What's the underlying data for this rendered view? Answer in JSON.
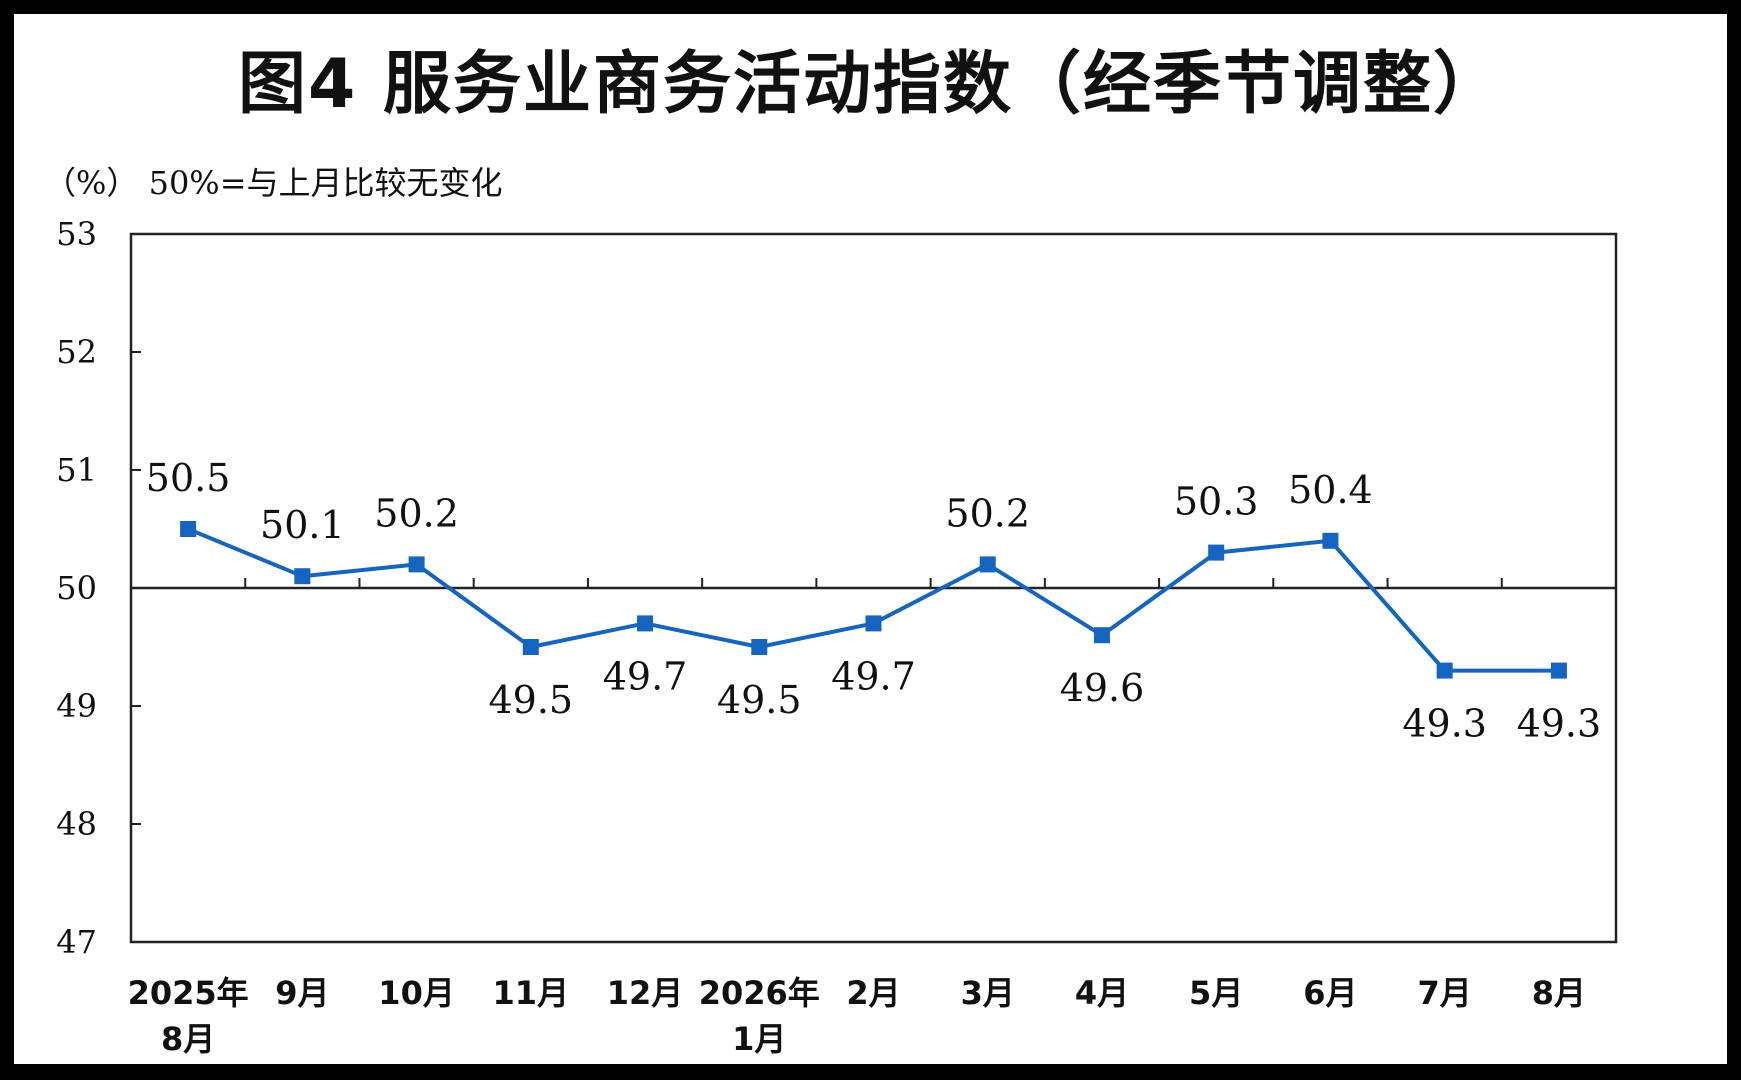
{
  "title": "图4  服务业商务活动指数（经季节调整）",
  "subtitle": "（%） 50%=与上月比较无变化",
  "colors": {
    "line": "#1565C0",
    "axis": "#222222",
    "background": "#ffffff",
    "frame": "#000000"
  },
  "chart_data": {
    "type": "line",
    "title": "图4  服务业商务活动指数（经季节调整）",
    "ylabel": "（%）",
    "note": "50%=与上月比较无变化",
    "categories": [
      "2025年\n8月",
      "9月",
      "10月",
      "11月",
      "12月",
      "2026年\n1月",
      "2月",
      "3月",
      "4月",
      "5月",
      "6月",
      "7月",
      "8月"
    ],
    "series": [
      {
        "values": [
          50.5,
          50.1,
          50.2,
          49.5,
          49.7,
          49.5,
          49.7,
          50.2,
          49.6,
          50.3,
          50.4,
          49.3,
          49.3
        ]
      }
    ],
    "data_labels": [
      "50.5",
      "50.1",
      "50.2",
      "49.5",
      "49.7",
      "49.5",
      "49.7",
      "50.2",
      "49.6",
      "50.3",
      "50.4",
      "49.3",
      "49.3"
    ],
    "ylim": [
      47,
      53
    ],
    "yticks": [
      47,
      48,
      49,
      50,
      51,
      52,
      53
    ],
    "ytick_labels": [
      "47",
      "48",
      "49",
      "50",
      "51",
      "52",
      "53"
    ],
    "reference_line": 50,
    "grid": false,
    "legend": "none"
  }
}
